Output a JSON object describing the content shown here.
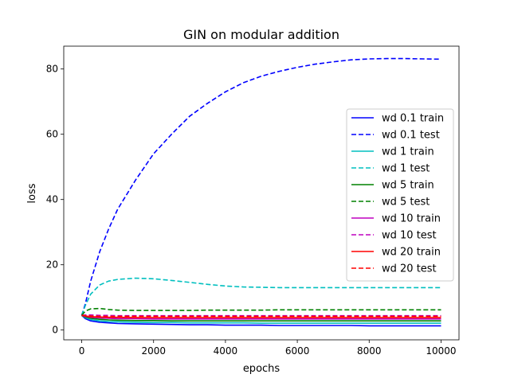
{
  "chart_data": {
    "type": "line",
    "title": "GIN on modular addition",
    "xlabel": "epochs",
    "ylabel": "loss",
    "xlim": [
      -500,
      10500
    ],
    "ylim": [
      -3,
      87
    ],
    "xticks": [
      0,
      2000,
      4000,
      6000,
      8000,
      10000
    ],
    "yticks": [
      0,
      20,
      40,
      60,
      80
    ],
    "xtick_labels": [
      "0",
      "2000",
      "4000",
      "6000",
      "8000",
      "10000"
    ],
    "ytick_labels": [
      "0",
      "20",
      "40",
      "60",
      "80"
    ],
    "grid": false,
    "legend_position": "center-right",
    "x": [
      0,
      100,
      250,
      500,
      750,
      1000,
      1500,
      2000,
      2500,
      3000,
      3500,
      4000,
      4500,
      5000,
      5500,
      6000,
      6500,
      7000,
      7500,
      8000,
      8500,
      9000,
      9500,
      10000
    ],
    "series": [
      {
        "name": "wd 0.1 train",
        "color": "#0000ff",
        "dash": "solid",
        "values": [
          4.5,
          3.5,
          2.8,
          2.4,
          2.2,
          2.0,
          1.9,
          1.8,
          1.7,
          1.6,
          1.6,
          1.5,
          1.5,
          1.5,
          1.4,
          1.4,
          1.4,
          1.4,
          1.4,
          1.3,
          1.3,
          1.3,
          1.3,
          1.3
        ]
      },
      {
        "name": "wd 0.1 test",
        "color": "#0000ff",
        "dash": "dashed",
        "values": [
          4.5,
          8,
          15,
          24,
          31,
          37,
          46,
          54,
          60,
          65.5,
          69.5,
          73,
          75.8,
          77.8,
          79.3,
          80.5,
          81.5,
          82.2,
          82.8,
          83.1,
          83.2,
          83.2,
          83.1,
          83.0
        ]
      },
      {
        "name": "wd 1 train",
        "color": "#00bfbf",
        "dash": "solid",
        "values": [
          4.5,
          3.8,
          3.2,
          2.8,
          2.6,
          2.5,
          2.4,
          2.3,
          2.3,
          2.2,
          2.2,
          2.2,
          2.2,
          2.1,
          2.1,
          2.1,
          2.1,
          2.1,
          2.1,
          2.1,
          2.1,
          2.1,
          2.1,
          2.1
        ]
      },
      {
        "name": "wd 1 test",
        "color": "#00bfbf",
        "dash": "dashed",
        "values": [
          4.5,
          7.5,
          11,
          13.8,
          15.0,
          15.5,
          15.9,
          15.7,
          15.2,
          14.6,
          14.0,
          13.5,
          13.2,
          13.1,
          13.0,
          13.0,
          13.0,
          13.0,
          13.0,
          13.0,
          13.0,
          13.0,
          13.0,
          13.0
        ]
      },
      {
        "name": "wd 5 train",
        "color": "#008000",
        "dash": "solid",
        "values": [
          4.5,
          4.0,
          3.6,
          3.3,
          3.1,
          3.0,
          2.9,
          2.9,
          2.8,
          2.8,
          2.8,
          2.8,
          2.8,
          2.8,
          2.8,
          2.8,
          2.8,
          2.8,
          2.8,
          2.8,
          2.8,
          2.8,
          2.8,
          2.8
        ]
      },
      {
        "name": "wd 5 test",
        "color": "#008000",
        "dash": "dashed",
        "values": [
          4.5,
          5.8,
          6.5,
          6.6,
          6.3,
          6.1,
          6.0,
          6.0,
          6.0,
          6.0,
          6.1,
          6.1,
          6.1,
          6.1,
          6.2,
          6.2,
          6.2,
          6.2,
          6.2,
          6.2,
          6.2,
          6.2,
          6.2,
          6.2
        ]
      },
      {
        "name": "wd 10 train",
        "color": "#bf00bf",
        "dash": "solid",
        "values": [
          4.5,
          4.2,
          3.9,
          3.7,
          3.6,
          3.5,
          3.5,
          3.4,
          3.4,
          3.4,
          3.4,
          3.4,
          3.4,
          3.4,
          3.4,
          3.4,
          3.4,
          3.4,
          3.4,
          3.4,
          3.4,
          3.4,
          3.4,
          3.4
        ]
      },
      {
        "name": "wd 10 test",
        "color": "#bf00bf",
        "dash": "dashed",
        "values": [
          4.5,
          4.6,
          4.6,
          4.5,
          4.5,
          4.4,
          4.4,
          4.4,
          4.4,
          4.4,
          4.4,
          4.4,
          4.4,
          4.4,
          4.4,
          4.4,
          4.4,
          4.4,
          4.4,
          4.4,
          4.4,
          4.4,
          4.4,
          4.4
        ]
      },
      {
        "name": "wd 20 train",
        "color": "#ff0000",
        "dash": "solid",
        "values": [
          4.5,
          4.3,
          4.1,
          4.0,
          3.9,
          3.9,
          3.8,
          3.8,
          3.8,
          3.8,
          3.8,
          3.8,
          3.8,
          3.8,
          3.8,
          3.8,
          3.8,
          3.8,
          3.8,
          3.8,
          3.8,
          3.8,
          3.8,
          3.8
        ]
      },
      {
        "name": "wd 20 test",
        "color": "#ff0000",
        "dash": "dashed",
        "values": [
          4.5,
          4.4,
          4.3,
          4.2,
          4.2,
          4.2,
          4.2,
          4.2,
          4.2,
          4.2,
          4.2,
          4.2,
          4.2,
          4.2,
          4.2,
          4.2,
          4.2,
          4.2,
          4.2,
          4.2,
          4.2,
          4.2,
          4.2,
          4.2
        ]
      }
    ]
  }
}
